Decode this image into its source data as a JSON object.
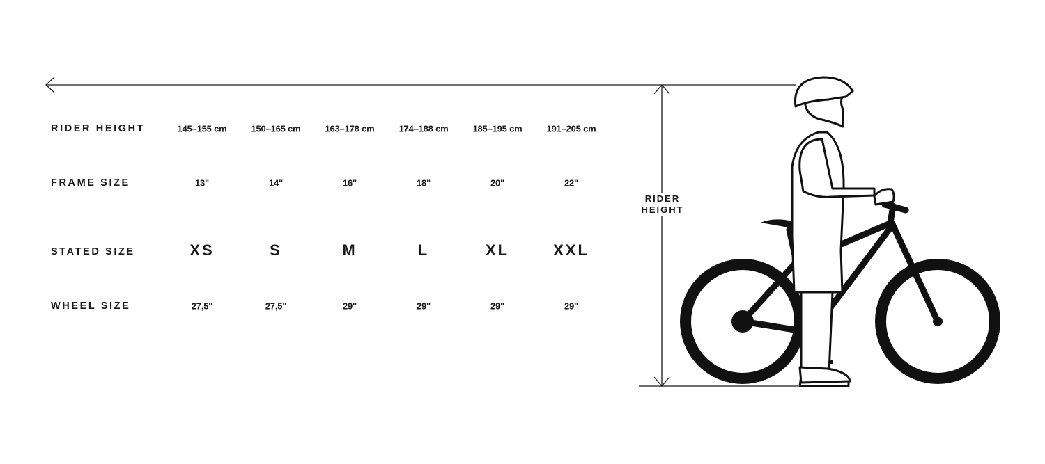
{
  "rows": [
    {
      "label": "RIDER HEIGHT",
      "values": [
        "145–155 cm",
        "150–165 cm",
        "163–178 cm",
        "174–188 cm",
        "185–195 cm",
        "191–205 cm"
      ]
    },
    {
      "label": "FRAME SIZE",
      "values": [
        "13\"",
        "14\"",
        "16\"",
        "18\"",
        "20\"",
        "22\""
      ]
    },
    {
      "label": "STATED SIZE",
      "values": [
        "XS",
        "S",
        "M",
        "L",
        "XL",
        "XXL"
      ]
    },
    {
      "label": "WHEEL SIZE",
      "values": [
        "27,5\"",
        "27,5\"",
        "29\"",
        "29\"",
        "29\"",
        "29\""
      ]
    }
  ],
  "diagram": {
    "rider_height_label_1": "RIDER",
    "rider_height_label_2": "HEIGHT"
  }
}
